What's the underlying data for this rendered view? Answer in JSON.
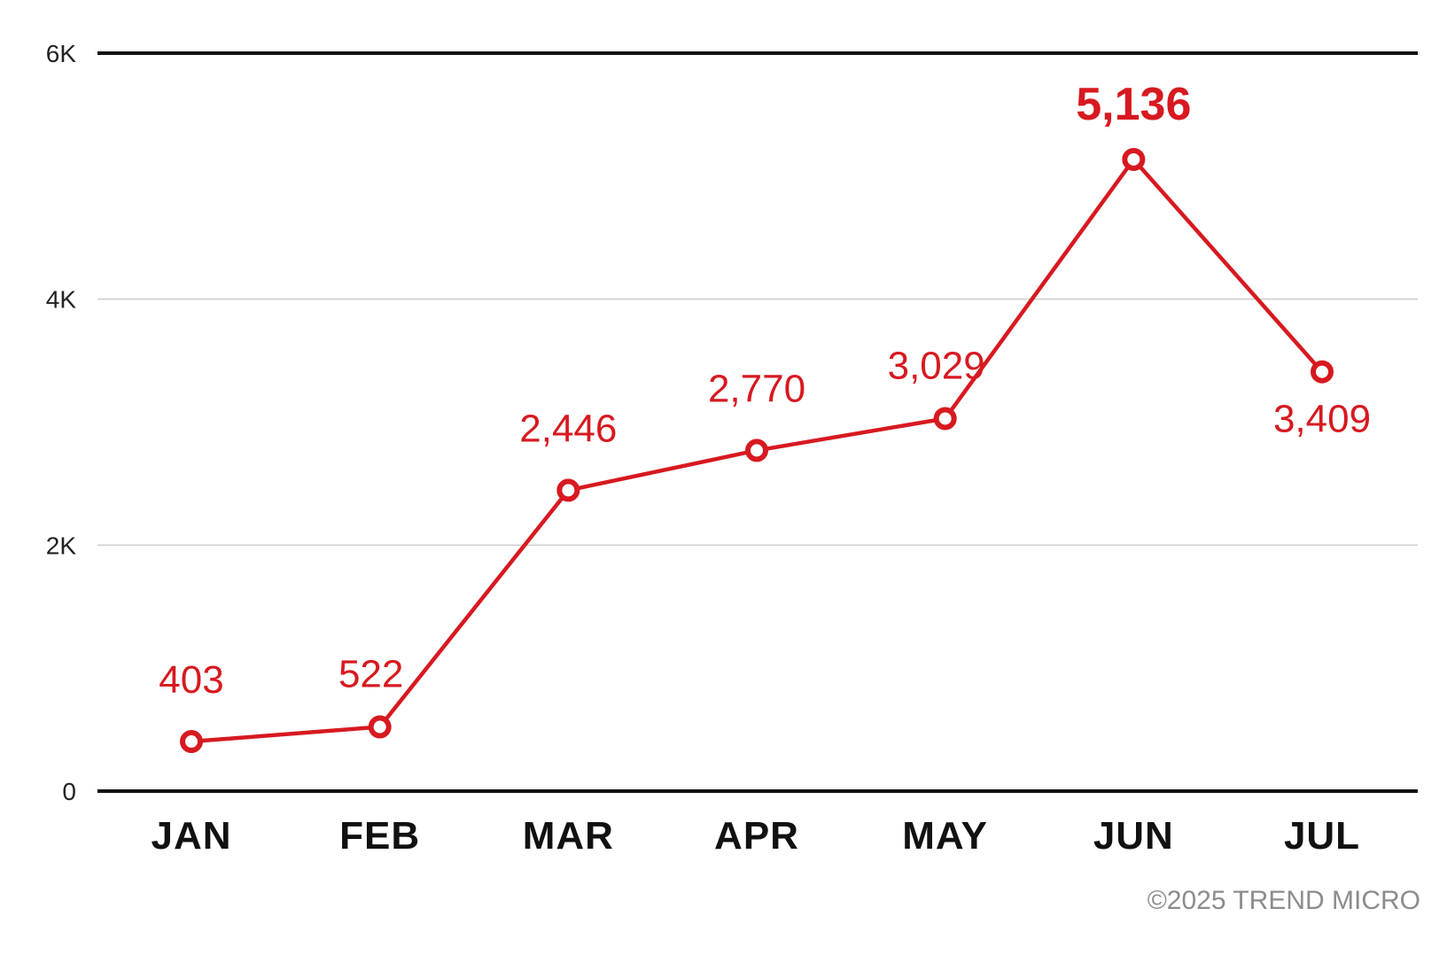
{
  "chart_data": {
    "type": "line",
    "categories": [
      "JAN",
      "FEB",
      "MAR",
      "APR",
      "MAY",
      "JUN",
      "JUL"
    ],
    "values": [
      403,
      522,
      2446,
      2770,
      3029,
      5136,
      3409
    ],
    "data_labels": [
      "403",
      "522",
      "2,446",
      "2,770",
      "3,029",
      "5,136",
      "3,409"
    ],
    "highlight_index": 5,
    "ylim": [
      0,
      6000
    ],
    "yticks": [
      0,
      2000,
      4000,
      6000
    ],
    "ytick_labels": [
      "0",
      "2K",
      "4K",
      "6K"
    ],
    "grid": true,
    "legend": "none",
    "colors": {
      "line": "#d71920",
      "axis": "#111111",
      "grid": "#cccccc"
    }
  },
  "footer": {
    "copyright": "©2025 TREND MICRO"
  }
}
